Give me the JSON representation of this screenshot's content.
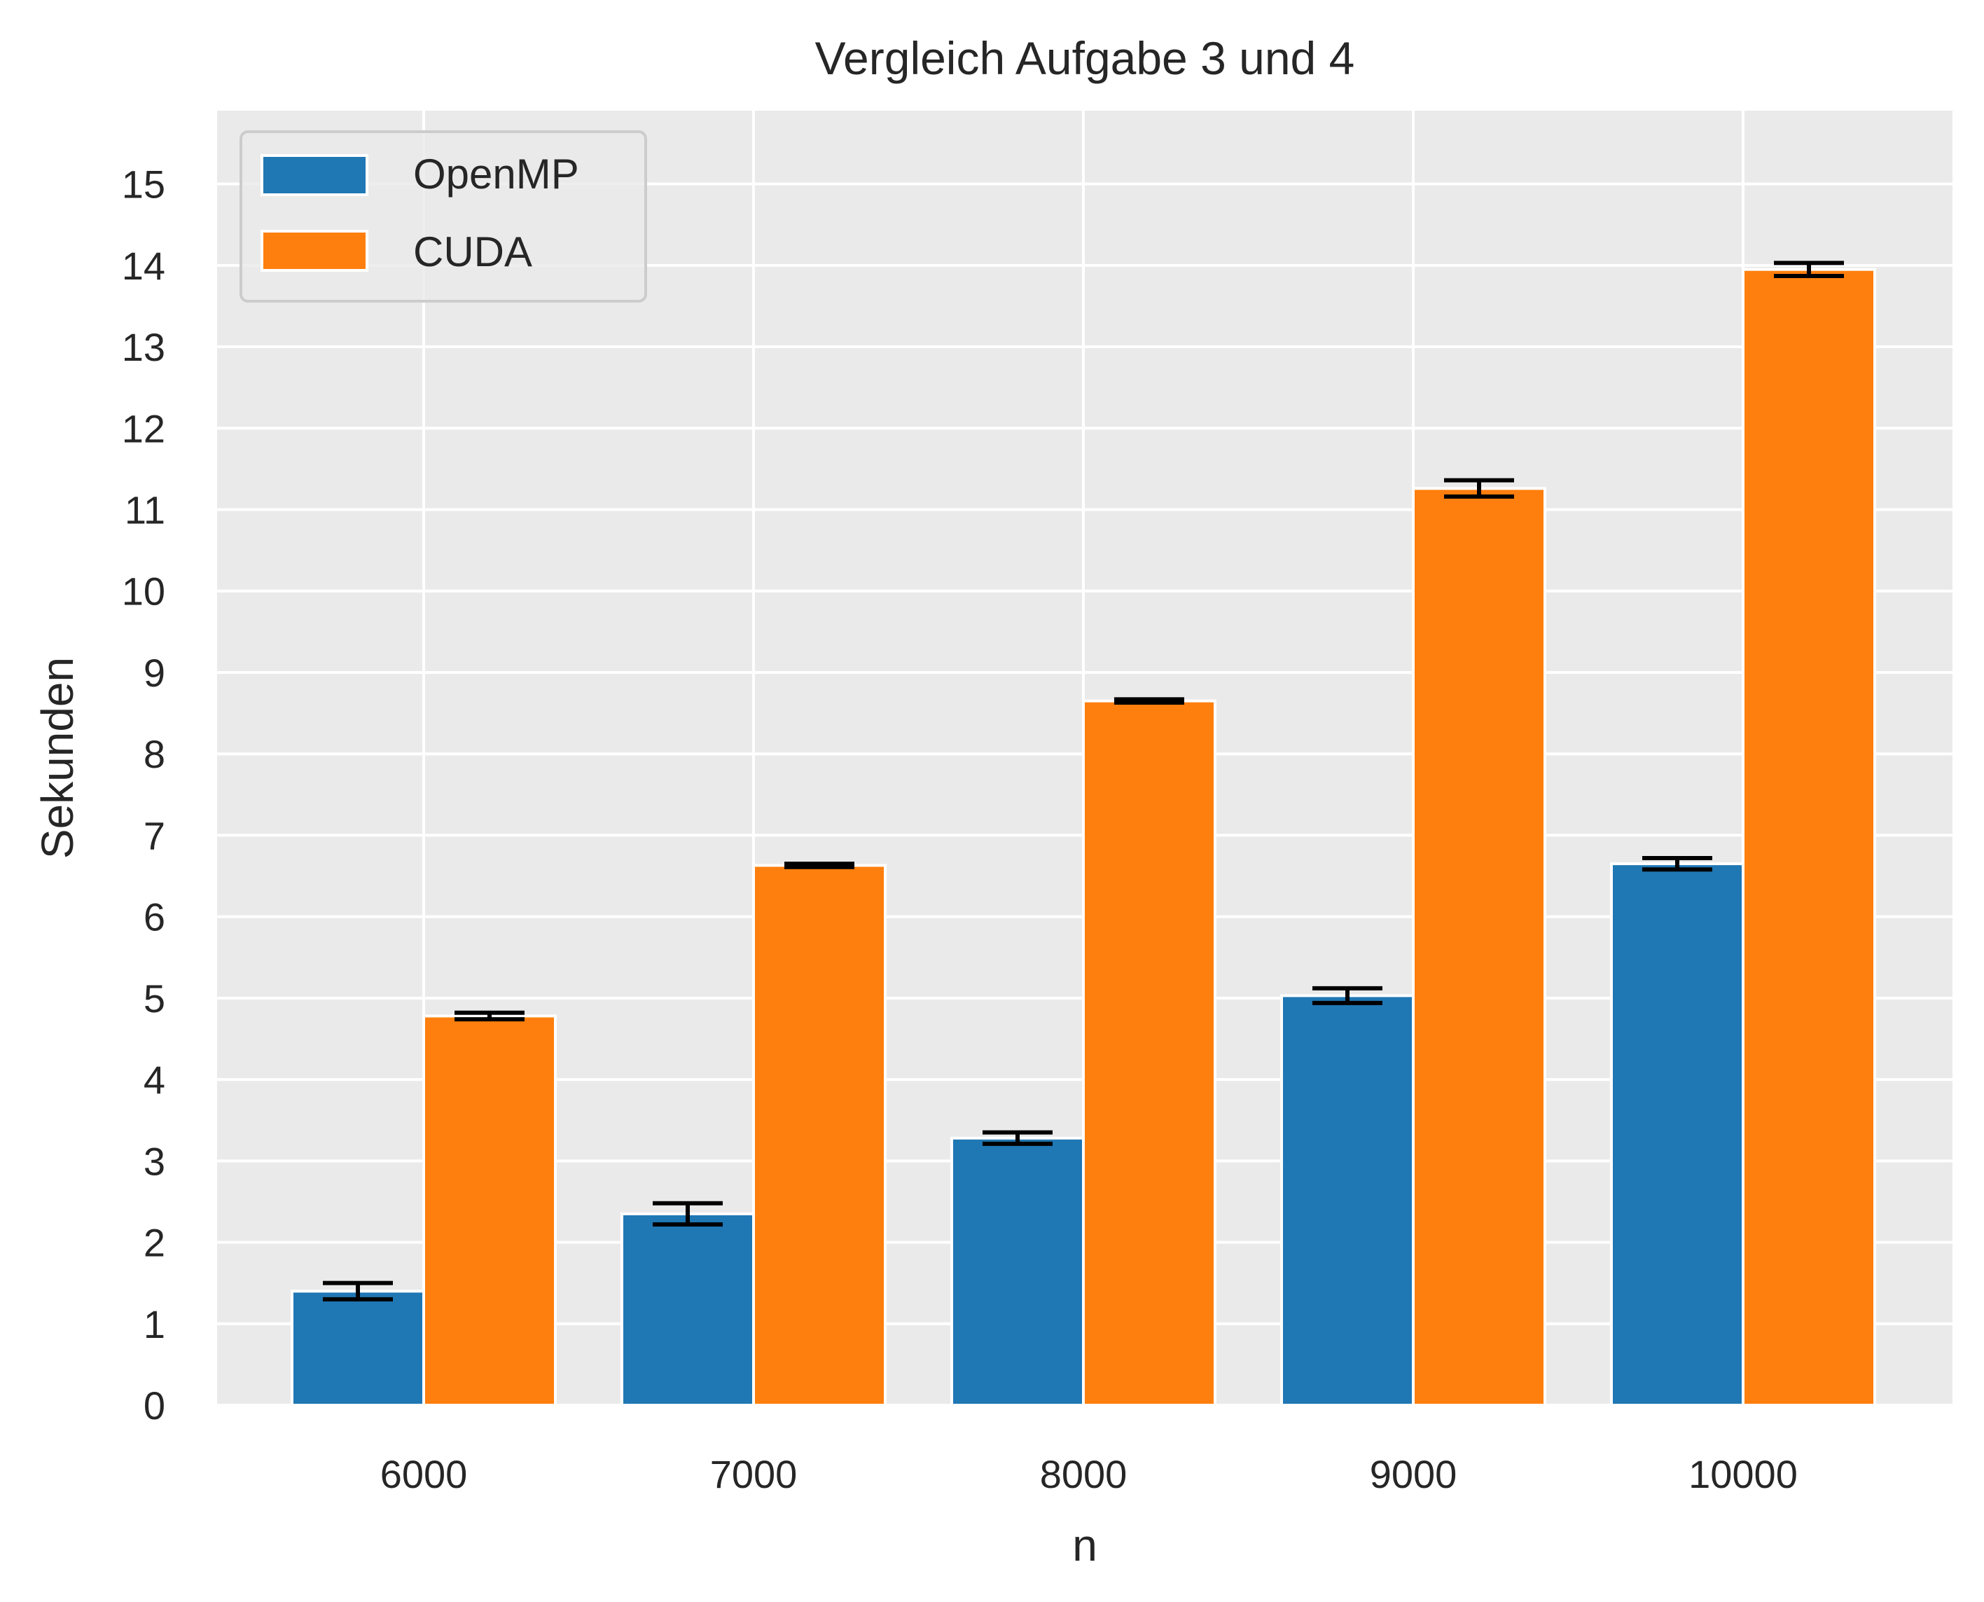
{
  "chart_data": {
    "type": "bar",
    "title": "Vergleich Aufgabe 3 und 4",
    "xlabel": "n",
    "ylabel": "Sekunden",
    "categories": [
      "6000",
      "7000",
      "8000",
      "9000",
      "10000"
    ],
    "series": [
      {
        "name": "OpenMP",
        "color": "#1f77b4",
        "values": [
          1.4,
          2.35,
          3.28,
          5.03,
          6.65
        ],
        "errors": [
          0.1,
          0.13,
          0.07,
          0.09,
          0.07
        ]
      },
      {
        "name": "CUDA",
        "color": "#ff7f0e",
        "values": [
          4.78,
          6.63,
          8.65,
          11.26,
          13.95
        ],
        "errors": [
          0.04,
          0.02,
          0.02,
          0.1,
          0.08
        ]
      }
    ],
    "ylim": [
      0,
      15.9
    ],
    "yticks": [
      0,
      1,
      2,
      3,
      4,
      5,
      6,
      7,
      8,
      9,
      10,
      11,
      12,
      13,
      14,
      15
    ],
    "grid": true,
    "legend_position": "top-left",
    "background_color": "#eaeaea",
    "grid_color": "#ffffff",
    "errorbar_color": "#000000"
  }
}
